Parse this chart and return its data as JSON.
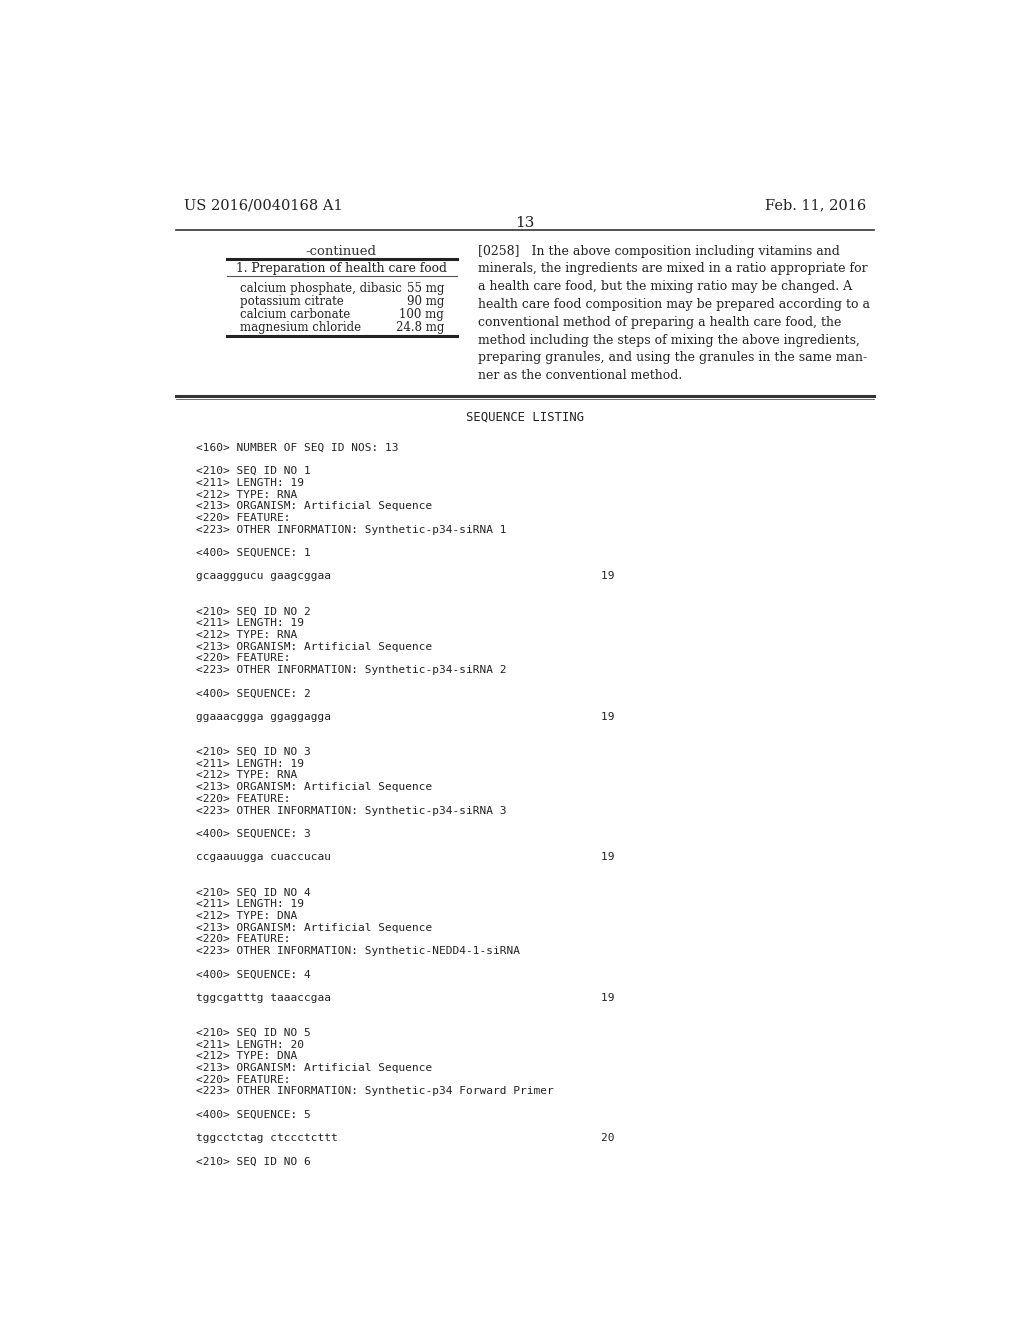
{
  "bg_color": "#ffffff",
  "header_left": "US 2016/0040168 A1",
  "header_right": "Feb. 11, 2016",
  "page_number": "13",
  "continued_label": "-continued",
  "table_title": "1. Preparation of health care food",
  "table_rows": [
    [
      "calcium phosphate, dibasic",
      "55 mg"
    ],
    [
      "potassium citrate",
      "90 mg"
    ],
    [
      "calcium carbonate",
      "100 mg"
    ],
    [
      "magnesium chloride",
      "24.8 mg"
    ]
  ],
  "right_paragraph": "[0258]   In the above composition including vitamins and\nminerals, the ingredients are mixed in a ratio appropriate for\na health care food, but the mixing ratio may be changed. A\nhealth care food composition may be prepared according to a\nconventional method of preparing a health care food, the\nmethod including the steps of mixing the above ingredients,\npreparing granules, and using the granules in the same man-\nner as the conventional method.",
  "seq_listing_title": "SEQUENCE LISTING",
  "seq_lines": [
    "",
    "<160> NUMBER OF SEQ ID NOS: 13",
    "",
    "<210> SEQ ID NO 1",
    "<211> LENGTH: 19",
    "<212> TYPE: RNA",
    "<213> ORGANISM: Artificial Sequence",
    "<220> FEATURE:",
    "<223> OTHER INFORMATION: Synthetic-p34-siRNA 1",
    "",
    "<400> SEQUENCE: 1",
    "",
    "gcaagggucu gaagcggaa                                        19",
    "",
    "",
    "<210> SEQ ID NO 2",
    "<211> LENGTH: 19",
    "<212> TYPE: RNA",
    "<213> ORGANISM: Artificial Sequence",
    "<220> FEATURE:",
    "<223> OTHER INFORMATION: Synthetic-p34-siRNA 2",
    "",
    "<400> SEQUENCE: 2",
    "",
    "ggaaacggga ggaggagga                                        19",
    "",
    "",
    "<210> SEQ ID NO 3",
    "<211> LENGTH: 19",
    "<212> TYPE: RNA",
    "<213> ORGANISM: Artificial Sequence",
    "<220> FEATURE:",
    "<223> OTHER INFORMATION: Synthetic-p34-siRNA 3",
    "",
    "<400> SEQUENCE: 3",
    "",
    "ccgaauugga cuaccucau                                        19",
    "",
    "",
    "<210> SEQ ID NO 4",
    "<211> LENGTH: 19",
    "<212> TYPE: DNA",
    "<213> ORGANISM: Artificial Sequence",
    "<220> FEATURE:",
    "<223> OTHER INFORMATION: Synthetic-NEDD4-1-siRNA",
    "",
    "<400> SEQUENCE: 4",
    "",
    "tggcgatttg taaaccgaa                                        19",
    "",
    "",
    "<210> SEQ ID NO 5",
    "<211> LENGTH: 20",
    "<212> TYPE: DNA",
    "<213> ORGANISM: Artificial Sequence",
    "<220> FEATURE:",
    "<223> OTHER INFORMATION: Synthetic-p34 Forward Primer",
    "",
    "<400> SEQUENCE: 5",
    "",
    "tggcctctag ctccctcttt                                       20",
    "",
    "<210> SEQ ID NO 6"
  ]
}
